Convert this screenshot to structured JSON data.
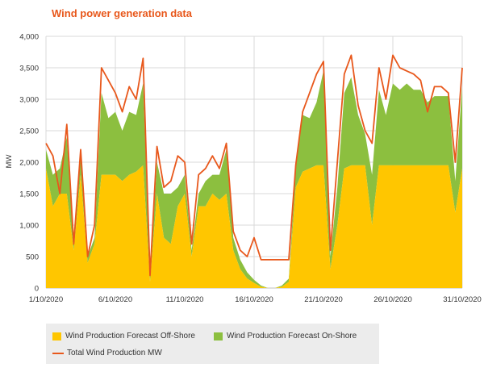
{
  "chart_data": {
    "type": "area",
    "title": "Wind power generation data",
    "ylabel": "MW",
    "xlabel": "",
    "ylim": [
      0,
      4000
    ],
    "yticks": [
      0,
      500,
      1000,
      1500,
      2000,
      2500,
      3000,
      3500,
      4000
    ],
    "ytick_labels": [
      "0",
      "500",
      "1,000",
      "1,500",
      "2,000",
      "2,500",
      "3,000",
      "3,500",
      "4,000"
    ],
    "xlim": [
      1,
      31
    ],
    "xticks": [
      1,
      6,
      11,
      16,
      21,
      26,
      31
    ],
    "xtick_labels": [
      "1/10/2020",
      "6/10/2020",
      "11/10/2020",
      "16/10/2020",
      "21/10/2020",
      "26/10/2020",
      "31/10/2020"
    ],
    "grid": true,
    "legend_placement": "bottom",
    "x": [
      1,
      1.5,
      2,
      2.5,
      3,
      3.5,
      4,
      4.5,
      5,
      5.5,
      6,
      6.5,
      7,
      7.5,
      8,
      8.5,
      9,
      9.5,
      10,
      10.5,
      11,
      11.5,
      12,
      12.5,
      13,
      13.5,
      14,
      14.5,
      15,
      15.5,
      16,
      16.5,
      17,
      17.5,
      18,
      18.5,
      19,
      19.5,
      20,
      20.5,
      21,
      21.5,
      22,
      22.5,
      23,
      23.5,
      24,
      24.5,
      25,
      25.5,
      26,
      26.5,
      27,
      27.5,
      28,
      28.5,
      29,
      29.5,
      30,
      30.5,
      31
    ],
    "series": [
      {
        "name": "Wind Production Forecast Off-Shore",
        "color": "#ffc600",
        "values": [
          1900,
          1300,
          1500,
          1500,
          600,
          1800,
          400,
          700,
          1800,
          1800,
          1800,
          1700,
          1800,
          1850,
          1950,
          100,
          1500,
          800,
          700,
          1300,
          1500,
          500,
          1300,
          1300,
          1500,
          1400,
          1500,
          600,
          300,
          150,
          80,
          20,
          0,
          0,
          20,
          100,
          1600,
          1850,
          1900,
          1950,
          1950,
          300,
          1000,
          1900,
          1950,
          1950,
          1950,
          1000,
          1950,
          1950,
          1950,
          1950,
          1950,
          1950,
          1950,
          1950,
          1950,
          1950,
          1950,
          1200,
          1900
        ]
      },
      {
        "name": "Wind Production Forecast On-Shore",
        "color": "#8cbf3f",
        "values": [
          300,
          500,
          400,
          900,
          100,
          300,
          100,
          100,
          1300,
          900,
          1000,
          800,
          1000,
          900,
          1300,
          100,
          500,
          700,
          800,
          300,
          300,
          100,
          200,
          400,
          300,
          400,
          700,
          200,
          150,
          100,
          50,
          20,
          0,
          0,
          20,
          50,
          300,
          900,
          800,
          1000,
          1500,
          200,
          600,
          1200,
          1400,
          800,
          500,
          800,
          1200,
          800,
          1300,
          1200,
          1300,
          1200,
          1200,
          1000,
          1100,
          1100,
          1100,
          500,
          1300
        ]
      },
      {
        "name": "Total Wind Production MW",
        "color": "#e8581c",
        "values": [
          2300,
          2100,
          1500,
          2600,
          700,
          2200,
          500,
          1000,
          3500,
          3300,
          3100,
          2800,
          3200,
          3000,
          3650,
          200,
          2250,
          1600,
          1700,
          2100,
          2000,
          700,
          1800,
          1900,
          2100,
          1900,
          2300,
          900,
          600,
          500,
          800,
          450,
          450,
          450,
          450,
          450,
          1950,
          2800,
          3100,
          3400,
          3600,
          600,
          2000,
          3400,
          3700,
          2900,
          2500,
          2300,
          3500,
          3000,
          3700,
          3500,
          3450,
          3400,
          3300,
          2800,
          3200,
          3200,
          3100,
          2000,
          3500
        ]
      }
    ]
  }
}
